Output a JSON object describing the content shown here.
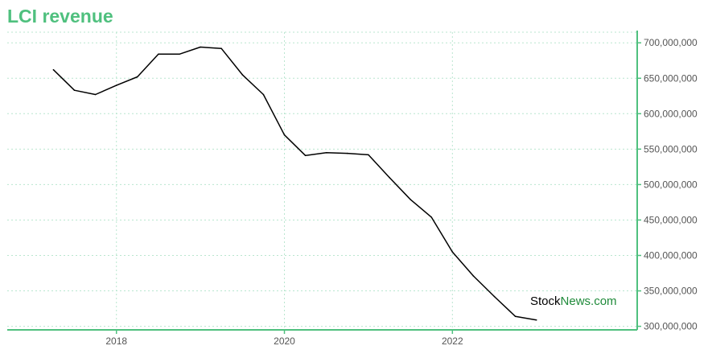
{
  "chart_data": {
    "type": "line",
    "title": "LCI revenue",
    "xlabel": "",
    "ylabel": "",
    "x_ticks": [
      2018,
      2020,
      2022
    ],
    "y_ticks": [
      "300,000,000",
      "350,000,000",
      "400,000,000",
      "450,000,000",
      "500,000,000",
      "550,000,000",
      "600,000,000",
      "650,000,000",
      "700,000,000"
    ],
    "xlim": [
      2016.7,
      2024.2
    ],
    "ylim": [
      295000000,
      715000000
    ],
    "grid": true,
    "colors": {
      "title": "#4fc07e",
      "axis": "#4fc07e",
      "line": "#000000",
      "grid": "#b9e6cf"
    },
    "series": [
      {
        "x": [
          2017.25,
          2017.5,
          2017.75,
          2018.0,
          2018.25,
          2018.5,
          2018.75,
          2019.0,
          2019.25,
          2019.5,
          2019.75,
          2020.0,
          2020.25,
          2020.5,
          2020.75,
          2021.0,
          2021.25,
          2021.5,
          2021.75,
          2022.0,
          2022.25,
          2022.5,
          2022.75,
          2023.0
        ],
        "values": [
          662000000,
          633000000,
          627000000,
          640000000,
          652000000,
          684000000,
          684000000,
          694000000,
          692000000,
          655000000,
          627000000,
          570000000,
          541000000,
          545000000,
          544000000,
          542000000,
          510000000,
          479000000,
          454000000,
          405000000,
          371000000,
          342000000,
          314000000,
          309000000
        ]
      }
    ]
  },
  "watermark": {
    "part1": "Stock",
    "part2": "News.com"
  }
}
